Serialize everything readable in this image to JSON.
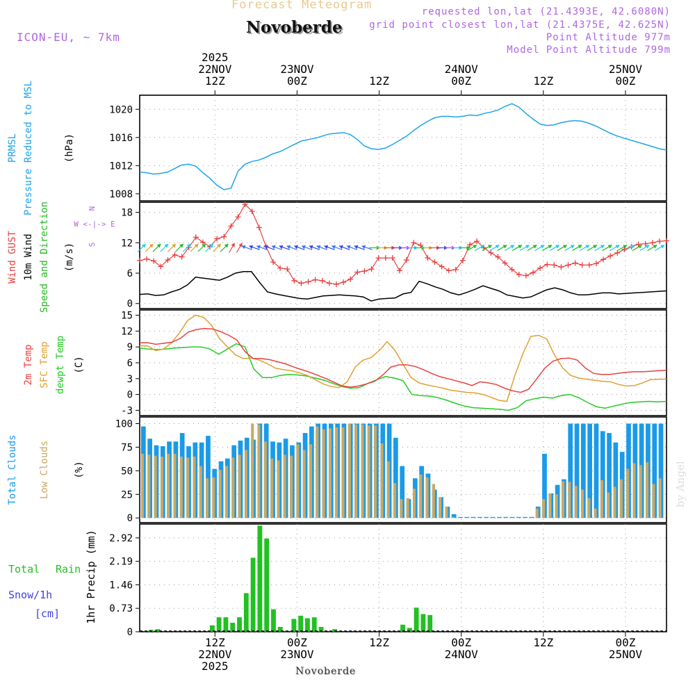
{
  "header": {
    "faint_title": "Forecast Meteogram",
    "location": "Novoberde",
    "model": "ICON-EU, ~ 7km",
    "requested": "requested lon,lat (21.4393E, 42.6080N)",
    "grid_point": "grid point closest lon,lat (21.4375E, 42.625N)",
    "point_altitude": "Point Altitude 977m",
    "model_altitude": "Model Point Altitude 799m"
  },
  "watermark": "by Angel",
  "footer_name": "Novoberde",
  "colors": {
    "pressure": "#1ca3ec",
    "gust": "#e84040",
    "wind": "#000000",
    "winddir": "#22bb22",
    "temp": "#e84040",
    "sfc": "#e0a030",
    "dewpt": "#22cc22",
    "total_clouds": "#1a9ae8",
    "low_clouds": "#c9a865",
    "rain": "#22c022",
    "snow": "#4040e0",
    "compass": "#b066e0"
  },
  "chart_data": {
    "type": "meteogram",
    "x_hours_start": 0,
    "x_hours_end": 77,
    "time_axis_top": [
      {
        "hour": 11,
        "lines": [
          "2025",
          "22NOV",
          "12Z"
        ]
      },
      {
        "hour": 23,
        "lines": [
          "23NOV",
          "00Z"
        ]
      },
      {
        "hour": 35,
        "lines": [
          "12Z"
        ]
      },
      {
        "hour": 47,
        "lines": [
          "24NOV",
          "00Z"
        ]
      },
      {
        "hour": 59,
        "lines": [
          "12Z"
        ]
      },
      {
        "hour": 71,
        "lines": [
          "25NOV",
          "00Z"
        ]
      }
    ],
    "time_axis_bottom": [
      {
        "hour": 11,
        "lines": [
          "12Z",
          "22NOV",
          "2025"
        ]
      },
      {
        "hour": 23,
        "lines": [
          "00Z",
          "23NOV"
        ]
      },
      {
        "hour": 35,
        "lines": [
          "12Z"
        ]
      },
      {
        "hour": 47,
        "lines": [
          "00Z",
          "24NOV"
        ]
      },
      {
        "hour": 59,
        "lines": [
          "12Z"
        ]
      },
      {
        "hour": 71,
        "lines": [
          "00Z",
          "25NOV"
        ]
      }
    ],
    "panels": {
      "pressure": {
        "ylabels": [
          {
            "text": "PRMSL",
            "color": "pressure"
          },
          {
            "text": "Pressure Reduced to MSL",
            "color": "pressure"
          },
          {
            "text": "(hPa)",
            "color": "wind"
          }
        ],
        "ylim": [
          1007,
          1022
        ],
        "yticks": [
          1008,
          1012,
          1016,
          1020
        ],
        "values": [
          1011.1,
          1011.0,
          1010.8,
          1010.9,
          1011.1,
          1011.6,
          1012.1,
          1012.2,
          1011.9,
          1011.0,
          1010.2,
          1009.2,
          1008.6,
          1008.8,
          1011.2,
          1012.2,
          1012.6,
          1012.8,
          1013.2,
          1013.7,
          1014.0,
          1014.5,
          1015.0,
          1015.5,
          1015.7,
          1015.9,
          1016.2,
          1016.5,
          1016.6,
          1016.7,
          1016.4,
          1015.7,
          1014.8,
          1014.4,
          1014.3,
          1014.5,
          1015.0,
          1015.6,
          1016.2,
          1017.0,
          1017.7,
          1018.3,
          1018.8,
          1019.0,
          1019.0,
          1018.9,
          1019.0,
          1019.2,
          1019.1,
          1019.4,
          1019.6,
          1019.9,
          1020.4,
          1020.8,
          1020.3,
          1019.4,
          1018.6,
          1017.9,
          1017.7,
          1017.8,
          1018.1,
          1018.3,
          1018.4,
          1018.3,
          1018.0,
          1017.6,
          1017.1,
          1016.6,
          1016.2,
          1015.9,
          1015.6,
          1015.3,
          1015.0,
          1014.7,
          1014.4,
          1014.2
        ]
      },
      "wind": {
        "ylabels": [
          {
            "text": "Wind GUST",
            "color": "gust"
          },
          {
            "text": "10m Wind",
            "color": "wind"
          },
          {
            "text": "Speed and Direction",
            "color": "winddir"
          },
          {
            "text": "(m/s)",
            "color": "wind"
          }
        ],
        "compass": [
          "N",
          "W <-|-> E",
          "S"
        ],
        "ylim": [
          -1,
          20
        ],
        "yticks": [
          0,
          6,
          12,
          18
        ],
        "gust": [
          8.5,
          8.8,
          8.4,
          7.3,
          8.6,
          9.6,
          9.2,
          11.1,
          13.1,
          12.1,
          11.2,
          12.8,
          13.2,
          15.3,
          17.1,
          19.6,
          18.2,
          15.0,
          11.2,
          8.2,
          7.0,
          6.8,
          4.5,
          4.0,
          4.3,
          4.7,
          4.5,
          4.0,
          3.8,
          4.2,
          4.8,
          6.2,
          6.4,
          6.8,
          9.0,
          9.0,
          9.0,
          6.5,
          8.6,
          12.0,
          11.5,
          9.0,
          8.2,
          7.3,
          6.5,
          6.7,
          8.5,
          11.6,
          12.3,
          11.0,
          10.0,
          9.2,
          8.0,
          6.7,
          5.7,
          5.5,
          6.1,
          7.0,
          7.7,
          7.6,
          7.2,
          7.6,
          8.0,
          7.6,
          7.6,
          7.9,
          8.7,
          9.4,
          10.0,
          10.7,
          11.2,
          11.7,
          11.8,
          12.0,
          12.3,
          12.4
        ],
        "wind": [
          1.8,
          1.9,
          1.6,
          1.7,
          2.3,
          2.8,
          3.7,
          5.2,
          5.0,
          4.8,
          4.6,
          5.2,
          6.0,
          6.3,
          6.3,
          4.2,
          2.3,
          1.9,
          1.6,
          1.3,
          1.0,
          0.9,
          1.2,
          1.5,
          1.6,
          1.7,
          1.6,
          1.5,
          1.3,
          0.5,
          0.9,
          1.0,
          1.1,
          1.9,
          2.2,
          4.4,
          3.9,
          3.3,
          2.8,
          2.1,
          1.7,
          2.2,
          2.8,
          3.5,
          3.0,
          2.5,
          1.7,
          1.4,
          1.1,
          1.3,
          2.0,
          2.7,
          3.1,
          2.7,
          2.1,
          1.7,
          1.7,
          1.9,
          2.1,
          2.1,
          1.9,
          2.0,
          2.1,
          2.2,
          2.3,
          2.4,
          2.5
        ]
      },
      "temperature": {
        "ylabels": [
          {
            "text": "2m Temp",
            "color": "temp"
          },
          {
            "text": "SFC Temp",
            "color": "sfc"
          },
          {
            "text": "dewpt Temp",
            "color": "dewpt"
          },
          {
            "text": "(C)",
            "color": "wind"
          }
        ],
        "ylim": [
          -4,
          16
        ],
        "yticks": [
          -3,
          0,
          3,
          6,
          9,
          12,
          15
        ],
        "t2m": [
          9.8,
          9.8,
          9.5,
          9.7,
          9.9,
          10.6,
          11.8,
          12.3,
          12.5,
          12.4,
          11.9,
          11.2,
          10.3,
          8.1,
          6.8,
          6.8,
          6.6,
          6.2,
          5.8,
          5.2,
          4.7,
          4.2,
          3.6,
          3.0,
          2.3,
          1.6,
          1.4,
          1.6,
          2.0,
          2.5,
          3.7,
          5.2,
          5.6,
          5.6,
          5.3,
          4.7,
          4.0,
          3.4,
          3.0,
          2.6,
          2.2,
          1.7,
          2.4,
          2.2,
          1.9,
          1.2,
          0.7,
          0.4,
          1.0,
          3.0,
          5.0,
          6.3,
          6.8,
          6.9,
          6.5,
          5.0,
          4.0,
          3.8,
          3.8,
          4.0,
          4.2,
          4.3,
          4.3,
          4.4,
          4.5,
          4.6
        ],
        "sfc": [
          9.2,
          9.2,
          8.3,
          8.6,
          9.8,
          11.7,
          14.0,
          15.0,
          14.6,
          13.1,
          10.6,
          9.0,
          7.5,
          6.8,
          6.9,
          6.5,
          5.8,
          5.0,
          4.7,
          4.5,
          4.1,
          3.6,
          2.8,
          2.0,
          1.5,
          1.3,
          2.4,
          5.2,
          6.5,
          7.0,
          8.3,
          10.0,
          8.3,
          5.7,
          3.2,
          2.2,
          1.8,
          1.5,
          1.2,
          0.8,
          0.6,
          0.4,
          0.3,
          0.0,
          -0.5,
          -1.1,
          -1.3,
          3.6,
          7.7,
          11.0,
          11.2,
          10.5,
          7.4,
          5.0,
          3.6,
          3.1,
          2.9,
          2.7,
          2.5,
          2.4,
          1.9,
          1.6,
          1.7,
          2.2,
          2.8,
          2.9,
          2.9
        ],
        "dewpt": [
          8.8,
          8.6,
          8.5,
          8.6,
          8.8,
          8.9,
          9.0,
          9.0,
          8.6,
          7.6,
          8.6,
          9.6,
          9.0,
          4.8,
          3.2,
          3.2,
          3.6,
          3.8,
          3.7,
          3.5,
          3.1,
          2.7,
          2.1,
          1.5,
          1.2,
          1.3,
          2.1,
          2.8,
          3.4,
          3.1,
          2.6,
          0.0,
          -0.2,
          -0.3,
          -0.6,
          -1.1,
          -1.7,
          -2.2,
          -2.5,
          -2.6,
          -2.7,
          -2.8,
          -3.0,
          -2.5,
          -1.2,
          -0.8,
          -0.5,
          -0.7,
          -0.2,
          0.0,
          -0.6,
          -1.5,
          -2.3,
          -2.6,
          -2.2,
          -1.8,
          -1.5,
          -1.4,
          -1.3,
          -1.4,
          -1.3
        ]
      },
      "clouds": {
        "ylabels": [
          {
            "text": "Total Clouds",
            "color": "total_clouds"
          },
          {
            "text": "Low Clouds",
            "color": "low_clouds"
          },
          {
            "text": "(%)",
            "color": "wind"
          }
        ],
        "ylim": [
          -5,
          107
        ],
        "yticks": [
          0,
          25,
          50,
          75,
          100
        ],
        "total": [
          97,
          84,
          77,
          76,
          81,
          81,
          90,
          76,
          80,
          80,
          87,
          52,
          60,
          63,
          77,
          82,
          85,
          83,
          100,
          100,
          81,
          80,
          84,
          77,
          80,
          90,
          97,
          100,
          100,
          100,
          100,
          100,
          100,
          100,
          100,
          100,
          100,
          100,
          100,
          85,
          55,
          20,
          42,
          55,
          47,
          30,
          22,
          12,
          4,
          1,
          1,
          1,
          1,
          1,
          1,
          1,
          1,
          1,
          1,
          1,
          1,
          12,
          68,
          26,
          35,
          41,
          100,
          100,
          100,
          100,
          100,
          92,
          90,
          80,
          70,
          100,
          100,
          100,
          100,
          100,
          100
        ],
        "low": [
          68,
          67,
          66,
          65,
          68,
          68,
          65,
          64,
          65,
          55,
          42,
          43,
          51,
          55,
          64,
          67,
          72,
          100,
          99,
          81,
          63,
          61,
          67,
          66,
          78,
          72,
          78,
          97,
          94,
          95,
          96,
          96,
          100,
          99,
          99,
          98,
          98,
          79,
          60,
          37,
          20,
          21,
          31,
          46,
          43,
          36,
          22,
          12,
          1,
          0,
          0,
          0,
          0,
          0,
          0,
          0,
          0,
          0,
          0,
          0,
          0,
          10,
          20,
          26,
          25,
          39,
          38,
          34,
          30,
          21,
          10,
          40,
          27,
          33,
          41,
          52,
          58,
          56,
          59,
          36,
          42
        ]
      },
      "precip": {
        "ylabels": [
          {
            "text": "Total",
            "color": "rain"
          },
          {
            "text": "Rain",
            "color": "rain"
          },
          {
            "text": "Snow/1h",
            "color": "snow"
          },
          {
            "text": "[cm]",
            "color": "snow"
          },
          {
            "text": "1hr Precip (mm)",
            "color": "wind"
          }
        ],
        "ylim": [
          0,
          3.35
        ],
        "yticks": [
          0,
          0.73,
          1.46,
          2.19,
          2.92
        ],
        "rain": [
          0,
          0.06,
          0.08,
          0,
          0,
          0,
          0,
          0,
          0,
          0,
          0.2,
          0.45,
          0.45,
          0.28,
          0.45,
          1.2,
          2.3,
          3.3,
          2.9,
          0.7,
          0.15,
          0,
          0.4,
          0.5,
          0.42,
          0.45,
          0.15,
          0,
          0.08,
          0,
          0,
          0,
          0,
          0,
          0,
          0,
          0,
          0,
          0.22,
          0.12,
          0.75,
          0.55,
          0.52,
          0,
          0,
          0,
          0,
          0,
          0,
          0,
          0,
          0,
          0,
          0,
          0,
          0,
          0,
          0,
          0,
          0,
          0,
          0,
          0,
          0,
          0,
          0,
          0,
          0,
          0,
          0,
          0,
          0,
          0,
          0,
          0,
          0,
          0
        ]
      }
    }
  }
}
